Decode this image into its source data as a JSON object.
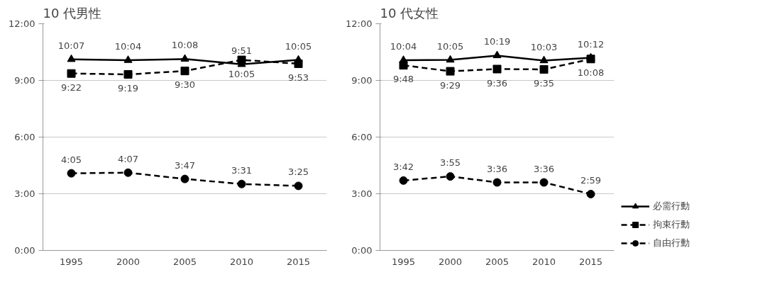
{
  "chart_data": [
    {
      "type": "line",
      "title": "10 代男性",
      "categories": [
        "1995",
        "2000",
        "2005",
        "2010",
        "2015"
      ],
      "ylim": [
        0,
        12
      ],
      "yticks": [
        {
          "value": 0,
          "label": "0:00"
        },
        {
          "value": 3,
          "label": "3:00"
        },
        {
          "value": 6,
          "label": "6:00"
        },
        {
          "value": 9,
          "label": "9:00"
        },
        {
          "value": 12,
          "label": "12:00"
        }
      ],
      "grid": "y",
      "legend": false,
      "series": [
        {
          "color": "#000000",
          "marker": "triangle",
          "line_style": "solid",
          "values": [
            10.1167,
            10.0667,
            10.1333,
            9.85,
            10.0833
          ],
          "value_labels": [
            "10:07",
            "10:04",
            "10:08",
            "9:51",
            "10:05"
          ]
        },
        {
          "color": "#000000",
          "marker": "square",
          "line_style": "dashed",
          "values": [
            9.3667,
            9.3167,
            9.5,
            10.0833,
            9.8833
          ],
          "value_labels": [
            "9:22",
            "9:19",
            "9:30",
            "10:05",
            "9:53"
          ]
        },
        {
          "color": "#000000",
          "marker": "circle",
          "line_style": "dashed",
          "values": [
            4.0833,
            4.1167,
            3.7833,
            3.5167,
            3.4167
          ],
          "value_labels": [
            "4:05",
            "4:07",
            "3:47",
            "3:31",
            "3:25"
          ]
        }
      ]
    },
    {
      "type": "line",
      "title": "10 代女性",
      "categories": [
        "1995",
        "2000",
        "2005",
        "2010",
        "2015"
      ],
      "ylim": [
        0,
        12
      ],
      "yticks": [
        {
          "value": 0,
          "label": "0:00"
        },
        {
          "value": 3,
          "label": "3:00"
        },
        {
          "value": 6,
          "label": "6:00"
        },
        {
          "value": 9,
          "label": "9:00"
        },
        {
          "value": 12,
          "label": "12:00"
        }
      ],
      "grid": "y",
      "legend": "right",
      "series": [
        {
          "name": "必需行動",
          "color": "#000000",
          "marker": "triangle",
          "line_style": "solid",
          "values": [
            10.0667,
            10.0833,
            10.3167,
            10.05,
            10.2
          ],
          "value_labels": [
            "10:04",
            "10:05",
            "10:19",
            "10:03",
            "10:12"
          ]
        },
        {
          "name": "拘束行動",
          "color": "#000000",
          "marker": "square",
          "line_style": "dashed",
          "values": [
            9.8,
            9.4833,
            9.6,
            9.5833,
            10.1333
          ],
          "value_labels": [
            "9:48",
            "9:29",
            "9:36",
            "9:35",
            "10:08"
          ]
        },
        {
          "name": "自由行動",
          "color": "#000000",
          "marker": "circle",
          "line_style": "dashed",
          "values": [
            3.7,
            3.9167,
            3.6,
            3.6,
            2.9833
          ],
          "value_labels": [
            "3:42",
            "3:55",
            "3:36",
            "3:36",
            "2:59"
          ]
        }
      ]
    }
  ]
}
